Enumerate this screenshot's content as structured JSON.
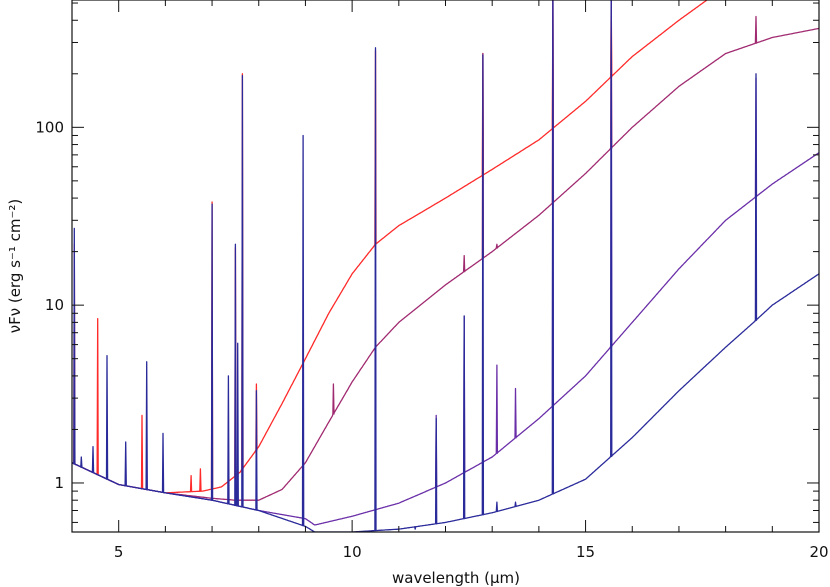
{
  "chart_data": {
    "type": "line",
    "title": "",
    "xlabel": "wavelength (μm)",
    "ylabel": "νFν (erg s⁻¹ cm⁻²)",
    "xlim": [
      4,
      20
    ],
    "ylim": [
      0.53,
      520
    ],
    "yscale": "log",
    "grid": false,
    "x_ticks": [
      5,
      10,
      15,
      20
    ],
    "x_tick_labels": [
      "5",
      "10",
      "15",
      "20"
    ],
    "y_ticks": [
      1,
      10,
      100
    ],
    "y_tick_labels": [
      "1",
      "10",
      "100"
    ],
    "series": [
      {
        "name": "red",
        "color": "#ff2a2a",
        "continuum": [
          [
            4,
            1.3
          ],
          [
            5,
            0.98
          ],
          [
            6,
            0.88
          ],
          [
            6.8,
            0.9
          ],
          [
            7.2,
            0.95
          ],
          [
            7.6,
            1.15
          ],
          [
            8,
            1.6
          ],
          [
            8.5,
            2.8
          ],
          [
            9,
            5
          ],
          [
            9.5,
            9
          ],
          [
            10,
            15
          ],
          [
            10.5,
            22
          ],
          [
            11,
            28
          ],
          [
            12,
            40
          ],
          [
            13,
            58
          ],
          [
            14,
            85
          ],
          [
            15,
            140
          ],
          [
            16,
            250
          ],
          [
            17,
            400
          ],
          [
            17.6,
            520
          ]
        ],
        "peaks": [
          [
            4.05,
            22
          ],
          [
            4.55,
            8.4
          ],
          [
            5.5,
            2.4
          ],
          [
            6.55,
            1.1
          ],
          [
            6.75,
            1.2
          ],
          [
            7.0,
            38
          ],
          [
            7.5,
            21
          ],
          [
            7.65,
            200
          ],
          [
            7.95,
            3.6
          ],
          [
            10.5,
            270
          ],
          [
            12.8,
            260
          ],
          [
            14.3,
            520
          ],
          [
            15.55,
            520
          ]
        ]
      },
      {
        "name": "magenta",
        "color": "#a02a70",
        "continuum": [
          [
            4,
            1.3
          ],
          [
            5,
            0.98
          ],
          [
            6,
            0.88
          ],
          [
            7,
            0.82
          ],
          [
            7.5,
            0.8
          ],
          [
            8,
            0.8
          ],
          [
            8.5,
            0.92
          ],
          [
            9,
            1.3
          ],
          [
            9.5,
            2.2
          ],
          [
            10,
            3.7
          ],
          [
            10.5,
            5.8
          ],
          [
            11,
            8
          ],
          [
            12,
            13
          ],
          [
            13,
            20
          ],
          [
            14,
            32
          ],
          [
            15,
            55
          ],
          [
            16,
            100
          ],
          [
            17,
            170
          ],
          [
            18,
            260
          ],
          [
            19,
            320
          ],
          [
            20,
            360
          ]
        ],
        "peaks": [
          [
            9.6,
            3.6
          ],
          [
            12.4,
            19
          ],
          [
            12.8,
            260
          ],
          [
            13.1,
            22
          ],
          [
            14.3,
            520
          ],
          [
            15.55,
            520
          ],
          [
            18.65,
            420
          ]
        ]
      },
      {
        "name": "purple",
        "color": "#6a2fa8",
        "continuum": [
          [
            4,
            1.3
          ],
          [
            5,
            0.98
          ],
          [
            6,
            0.88
          ],
          [
            7,
            0.8
          ],
          [
            8,
            0.7
          ],
          [
            9,
            0.63
          ],
          [
            9.2,
            0.58
          ],
          [
            10,
            0.65
          ],
          [
            11,
            0.77
          ],
          [
            12,
            1.0
          ],
          [
            13,
            1.4
          ],
          [
            14,
            2.3
          ],
          [
            15,
            4.0
          ],
          [
            16,
            8
          ],
          [
            17,
            16
          ],
          [
            18,
            30
          ],
          [
            19,
            48
          ],
          [
            20,
            72
          ]
        ],
        "peaks": [
          [
            11.8,
            2.4
          ],
          [
            12.4,
            8.6
          ],
          [
            13.1,
            4.6
          ],
          [
            13.5,
            3.4
          ],
          [
            14.3,
            520
          ],
          [
            15.55,
            520
          ],
          [
            18.65,
            190
          ]
        ]
      },
      {
        "name": "blue",
        "color": "#2a2a9a",
        "continuum": [
          [
            4,
            1.3
          ],
          [
            5,
            0.98
          ],
          [
            6,
            0.88
          ],
          [
            7,
            0.8
          ],
          [
            8,
            0.7
          ],
          [
            9,
            0.57
          ],
          [
            9.2,
            0.53
          ],
          [
            10,
            0.53
          ],
          [
            11,
            0.55
          ],
          [
            12,
            0.6
          ],
          [
            13,
            0.68
          ],
          [
            14,
            0.8
          ],
          [
            15,
            1.05
          ],
          [
            16,
            1.8
          ],
          [
            17,
            3.3
          ],
          [
            18,
            5.8
          ],
          [
            18.6,
            8
          ],
          [
            19,
            10
          ],
          [
            20,
            15
          ]
        ],
        "peaks": [
          [
            4.05,
            27
          ],
          [
            4.2,
            1.4
          ],
          [
            4.45,
            1.6
          ],
          [
            4.75,
            5.2
          ],
          [
            5.15,
            1.7
          ],
          [
            5.6,
            4.8
          ],
          [
            5.95,
            1.9
          ],
          [
            7.0,
            37
          ],
          [
            7.35,
            4.0
          ],
          [
            7.5,
            22
          ],
          [
            7.55,
            6.1
          ],
          [
            7.65,
            195
          ],
          [
            7.95,
            3.3
          ],
          [
            8.95,
            90
          ],
          [
            10.5,
            280
          ],
          [
            11.35,
            0.55
          ],
          [
            11.8,
            2.3
          ],
          [
            12.4,
            8.7
          ],
          [
            12.8,
            255
          ],
          [
            13.1,
            0.78
          ],
          [
            13.5,
            0.78
          ],
          [
            14.3,
            520
          ],
          [
            15.55,
            520
          ],
          [
            18.65,
            200
          ]
        ]
      }
    ]
  }
}
